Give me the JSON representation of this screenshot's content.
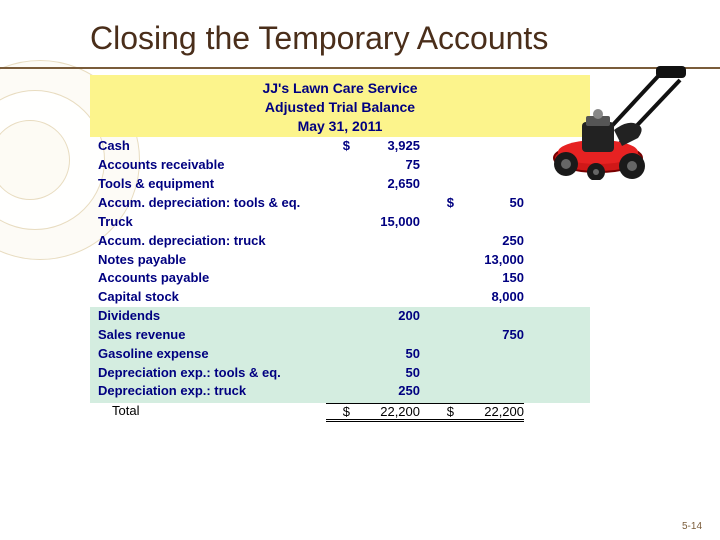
{
  "slide": {
    "title": "Closing the Temporary Accounts",
    "page_number": "5-14"
  },
  "colors": {
    "title_color": "#4a2e1a",
    "header_bg": "#fcf48c",
    "text_navy": "#000080",
    "highlight_bg": "#d4ede0",
    "page_bg": "#ffffff"
  },
  "table": {
    "header": {
      "line1": "JJ's Lawn Care Service",
      "line2": "Adjusted Trial Balance",
      "line3": "May 31, 2011"
    },
    "currency": "$",
    "perm_rows": [
      {
        "account": "Cash",
        "debit": "3,925",
        "credit": "",
        "show_dollar_debit": true,
        "show_dollar_credit": false
      },
      {
        "account": "Accounts receivable",
        "debit": "75",
        "credit": ""
      },
      {
        "account": "Tools & equipment",
        "debit": "2,650",
        "credit": ""
      },
      {
        "account": "Accum. depreciation: tools & eq.",
        "debit": "",
        "credit": "50",
        "show_dollar_credit": true
      },
      {
        "account": "Truck",
        "debit": "15,000",
        "credit": ""
      },
      {
        "account": "Accum. depreciation: truck",
        "debit": "",
        "credit": "250"
      },
      {
        "account": "Notes payable",
        "debit": "",
        "credit": "13,000"
      },
      {
        "account": "Accounts payable",
        "debit": "",
        "credit": "150"
      },
      {
        "account": "Capital stock",
        "debit": "",
        "credit": "8,000"
      }
    ],
    "temp_rows": [
      {
        "account": "Dividends",
        "debit": "200",
        "credit": ""
      },
      {
        "account": "Sales revenue",
        "debit": "",
        "credit": "750"
      },
      {
        "account": "Gasoline expense",
        "debit": "50",
        "credit": ""
      },
      {
        "account": "Depreciation exp.: tools & eq.",
        "debit": "50",
        "credit": ""
      },
      {
        "account": "Depreciation exp.: truck",
        "debit": "250",
        "credit": ""
      }
    ],
    "total": {
      "label": "Total",
      "debit": "22,200",
      "credit": "22,200"
    }
  },
  "illustration": {
    "name": "lawnmower",
    "body_color": "#d01818",
    "dark_color": "#222222",
    "blade_color": "#cccccc",
    "handle_color": "#111111",
    "wheel_color": "#1a1a1a"
  }
}
